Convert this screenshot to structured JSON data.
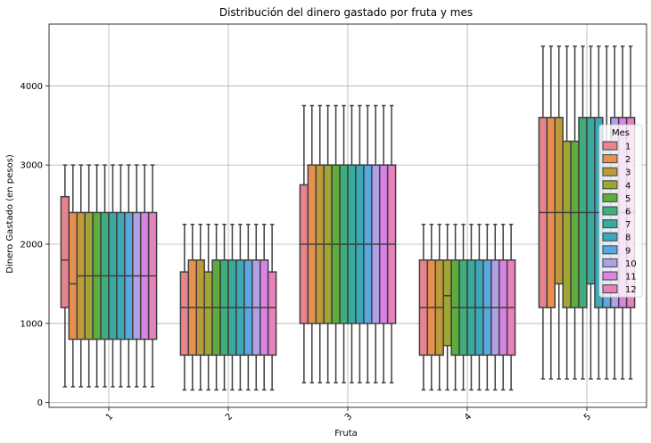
{
  "chart_data": {
    "type": "box",
    "title": "Distribución del dinero gastado por fruta y mes",
    "xlabel": "Fruta",
    "ylabel": "Dinero Gastado (en pesos)",
    "categories": [
      "1",
      "2",
      "3",
      "4",
      "5"
    ],
    "ylim": [
      -60,
      4780
    ],
    "yticks": [
      0,
      1000,
      2000,
      3000,
      4000
    ],
    "grid": true,
    "legend": {
      "title": "Mes",
      "placement": "right"
    },
    "series": [
      {
        "name": "1",
        "color": "#e8848e",
        "boxes": [
          {
            "whislo": 200,
            "q1": 1200,
            "med": 1800,
            "q3": 2600,
            "whishi": 3000
          },
          {
            "whislo": 160,
            "q1": 600,
            "med": 1200,
            "q3": 1650,
            "whishi": 2250
          },
          {
            "whislo": 250,
            "q1": 1000,
            "med": 2000,
            "q3": 2750,
            "whishi": 3750
          },
          {
            "whislo": 160,
            "q1": 600,
            "med": 1200,
            "q3": 1800,
            "whishi": 2250
          },
          {
            "whislo": 300,
            "q1": 1200,
            "med": 2400,
            "q3": 3600,
            "whishi": 4500
          }
        ]
      },
      {
        "name": "2",
        "color": "#e89050",
        "boxes": [
          {
            "whislo": 200,
            "q1": 800,
            "med": 1500,
            "q3": 2400,
            "whishi": 3000
          },
          {
            "whislo": 160,
            "q1": 600,
            "med": 1200,
            "q3": 1800,
            "whishi": 2250
          },
          {
            "whislo": 250,
            "q1": 1000,
            "med": 2000,
            "q3": 3000,
            "whishi": 3750
          },
          {
            "whislo": 160,
            "q1": 600,
            "med": 1200,
            "q3": 1800,
            "whishi": 2250
          },
          {
            "whislo": 300,
            "q1": 1200,
            "med": 2400,
            "q3": 3600,
            "whishi": 4500
          }
        ]
      },
      {
        "name": "3",
        "color": "#bf9a3a",
        "boxes": [
          {
            "whislo": 200,
            "q1": 800,
            "med": 1600,
            "q3": 2400,
            "whishi": 3000
          },
          {
            "whislo": 160,
            "q1": 600,
            "med": 1200,
            "q3": 1800,
            "whishi": 2250
          },
          {
            "whislo": 250,
            "q1": 1000,
            "med": 2000,
            "q3": 3000,
            "whishi": 3750
          },
          {
            "whislo": 160,
            "q1": 600,
            "med": 1200,
            "q3": 1800,
            "whishi": 2250
          },
          {
            "whislo": 300,
            "q1": 1500,
            "med": 2400,
            "q3": 3600,
            "whishi": 4500
          }
        ]
      },
      {
        "name": "4",
        "color": "#a0a636",
        "boxes": [
          {
            "whislo": 200,
            "q1": 800,
            "med": 1600,
            "q3": 2400,
            "whishi": 3000
          },
          {
            "whislo": 160,
            "q1": 600,
            "med": 1200,
            "q3": 1650,
            "whishi": 2250
          },
          {
            "whislo": 250,
            "q1": 1000,
            "med": 2000,
            "q3": 3000,
            "whishi": 3750
          },
          {
            "whislo": 160,
            "q1": 720,
            "med": 1350,
            "q3": 1800,
            "whishi": 2250
          },
          {
            "whislo": 300,
            "q1": 1200,
            "med": 2400,
            "q3": 3300,
            "whishi": 4500
          }
        ]
      },
      {
        "name": "5",
        "color": "#5ead3c",
        "boxes": [
          {
            "whislo": 200,
            "q1": 800,
            "med": 1600,
            "q3": 2400,
            "whishi": 3000
          },
          {
            "whislo": 160,
            "q1": 600,
            "med": 1200,
            "q3": 1800,
            "whishi": 2250
          },
          {
            "whislo": 250,
            "q1": 1000,
            "med": 2000,
            "q3": 3000,
            "whishi": 3750
          },
          {
            "whislo": 160,
            "q1": 600,
            "med": 1200,
            "q3": 1800,
            "whishi": 2250
          },
          {
            "whislo": 300,
            "q1": 1200,
            "med": 2400,
            "q3": 3300,
            "whishi": 4500
          }
        ]
      },
      {
        "name": "6",
        "color": "#3fae7c",
        "boxes": [
          {
            "whislo": 200,
            "q1": 800,
            "med": 1600,
            "q3": 2400,
            "whishi": 3000
          },
          {
            "whislo": 160,
            "q1": 600,
            "med": 1200,
            "q3": 1800,
            "whishi": 2250
          },
          {
            "whislo": 250,
            "q1": 1000,
            "med": 2000,
            "q3": 3000,
            "whishi": 3750
          },
          {
            "whislo": 160,
            "q1": 600,
            "med": 1200,
            "q3": 1800,
            "whishi": 2250
          },
          {
            "whislo": 300,
            "q1": 1200,
            "med": 2400,
            "q3": 3600,
            "whishi": 4500
          }
        ]
      },
      {
        "name": "7",
        "color": "#3aaa9e",
        "boxes": [
          {
            "whislo": 200,
            "q1": 800,
            "med": 1600,
            "q3": 2400,
            "whishi": 3000
          },
          {
            "whislo": 160,
            "q1": 600,
            "med": 1200,
            "q3": 1800,
            "whishi": 2250
          },
          {
            "whislo": 250,
            "q1": 1000,
            "med": 2000,
            "q3": 3000,
            "whishi": 3750
          },
          {
            "whislo": 160,
            "q1": 600,
            "med": 1200,
            "q3": 1800,
            "whishi": 2250
          },
          {
            "whislo": 300,
            "q1": 1500,
            "med": 2400,
            "q3": 3600,
            "whishi": 4500
          }
        ]
      },
      {
        "name": "8",
        "color": "#3ca8b8",
        "boxes": [
          {
            "whislo": 200,
            "q1": 800,
            "med": 1600,
            "q3": 2400,
            "whishi": 3000
          },
          {
            "whislo": 160,
            "q1": 600,
            "med": 1200,
            "q3": 1800,
            "whishi": 2250
          },
          {
            "whislo": 250,
            "q1": 1000,
            "med": 2000,
            "q3": 3000,
            "whishi": 3750
          },
          {
            "whislo": 160,
            "q1": 600,
            "med": 1200,
            "q3": 1800,
            "whishi": 2250
          },
          {
            "whislo": 300,
            "q1": 1200,
            "med": 2400,
            "q3": 3600,
            "whishi": 4500
          }
        ]
      },
      {
        "name": "9",
        "color": "#5aa8e0",
        "boxes": [
          {
            "whislo": 200,
            "q1": 800,
            "med": 1600,
            "q3": 2400,
            "whishi": 3000
          },
          {
            "whislo": 160,
            "q1": 600,
            "med": 1200,
            "q3": 1800,
            "whishi": 2250
          },
          {
            "whislo": 250,
            "q1": 1000,
            "med": 2000,
            "q3": 3000,
            "whishi": 3750
          },
          {
            "whislo": 160,
            "q1": 600,
            "med": 1200,
            "q3": 1800,
            "whishi": 2250
          },
          {
            "whislo": 300,
            "q1": 1200,
            "med": 2400,
            "q3": 3300,
            "whishi": 4500
          }
        ]
      },
      {
        "name": "10",
        "color": "#b0a0e6",
        "boxes": [
          {
            "whislo": 200,
            "q1": 800,
            "med": 1600,
            "q3": 2400,
            "whishi": 3000
          },
          {
            "whislo": 160,
            "q1": 600,
            "med": 1200,
            "q3": 1800,
            "whishi": 2250
          },
          {
            "whislo": 250,
            "q1": 1000,
            "med": 2000,
            "q3": 3000,
            "whishi": 3750
          },
          {
            "whislo": 160,
            "q1": 600,
            "med": 1200,
            "q3": 1800,
            "whishi": 2250
          },
          {
            "whislo": 300,
            "q1": 1200,
            "med": 2400,
            "q3": 3600,
            "whishi": 4500
          }
        ]
      },
      {
        "name": "11",
        "color": "#d884e4",
        "boxes": [
          {
            "whislo": 200,
            "q1": 800,
            "med": 1600,
            "q3": 2400,
            "whishi": 3000
          },
          {
            "whislo": 160,
            "q1": 600,
            "med": 1200,
            "q3": 1800,
            "whishi": 2250
          },
          {
            "whislo": 250,
            "q1": 1000,
            "med": 2000,
            "q3": 3000,
            "whishi": 3750
          },
          {
            "whislo": 160,
            "q1": 600,
            "med": 1200,
            "q3": 1800,
            "whishi": 2250
          },
          {
            "whislo": 300,
            "q1": 1200,
            "med": 2400,
            "q3": 3600,
            "whishi": 4500
          }
        ]
      },
      {
        "name": "12",
        "color": "#e882bc",
        "boxes": [
          {
            "whislo": 200,
            "q1": 800,
            "med": 1600,
            "q3": 2400,
            "whishi": 3000
          },
          {
            "whislo": 160,
            "q1": 600,
            "med": 1200,
            "q3": 1650,
            "whishi": 2250
          },
          {
            "whislo": 250,
            "q1": 1000,
            "med": 2000,
            "q3": 3000,
            "whishi": 3750
          },
          {
            "whislo": 160,
            "q1": 600,
            "med": 1200,
            "q3": 1800,
            "whishi": 2250
          },
          {
            "whislo": 300,
            "q1": 1200,
            "med": 2400,
            "q3": 3600,
            "whishi": 4500
          }
        ]
      }
    ]
  }
}
